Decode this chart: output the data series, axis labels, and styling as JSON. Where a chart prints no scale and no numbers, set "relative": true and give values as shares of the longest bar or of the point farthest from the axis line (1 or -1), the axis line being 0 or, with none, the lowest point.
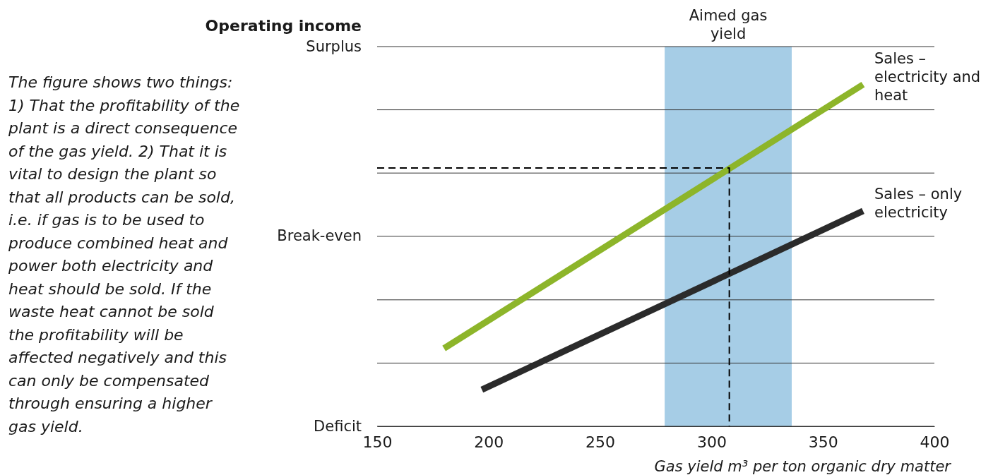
{
  "chart_data": {
    "type": "line",
    "ylabel": "Operating income",
    "xlabel": "Gas yield m³ per ton organic dry matter",
    "annotations": [
      "The figure shows two things: 1) That the profitability of the plant is a direct consequence of the gas yield. 2) That it is vital to design the plant so that all products can be sold, i.e. if gas is to be used to produce combined heat and power  both electricity and heat should be sold. If the waste heat cannot be sold the profitability will be affected negatively and this can only be compensated through ensuring a higher gas yield."
    ],
    "xlim": [
      150,
      400
    ],
    "xticks": [
      150,
      200,
      250,
      300,
      350,
      400
    ],
    "relative": true,
    "ref_lines": [
      {
        "axis": "y",
        "value": 0,
        "label": "Deficit"
      },
      {
        "axis": "y",
        "value": 0.185,
        "label": null
      },
      {
        "axis": "y",
        "value": 0.37,
        "label": null
      },
      {
        "axis": "y",
        "value": 0.556,
        "label": "Break-even"
      },
      {
        "axis": "y",
        "value": 0.741,
        "label": null
      },
      {
        "axis": "y",
        "value": 0.926,
        "label": null
      },
      {
        "axis": "y",
        "value": 1.111,
        "label": "Surplus"
      }
    ],
    "bands": [
      {
        "axis": "x",
        "from": 279,
        "to": 336,
        "label": "Aimed gas yield",
        "color": "#a6cde6"
      }
    ],
    "series": [
      {
        "name": "Sales – electricity and heat",
        "color": "#8db52a",
        "x": [
          180,
          368
        ],
        "values": [
          0.228,
          1
        ]
      },
      {
        "name": "Sales – only electricity",
        "color": "#2b2b2b",
        "x": [
          197,
          368
        ],
        "values": [
          0.107,
          0.63
        ]
      },
      {
        "color": "#000000",
        "x": [
          150,
          308,
          308
        ],
        "values": [
          0.756,
          0.756,
          0
        ],
        "line_style": "dashed"
      }
    ]
  }
}
